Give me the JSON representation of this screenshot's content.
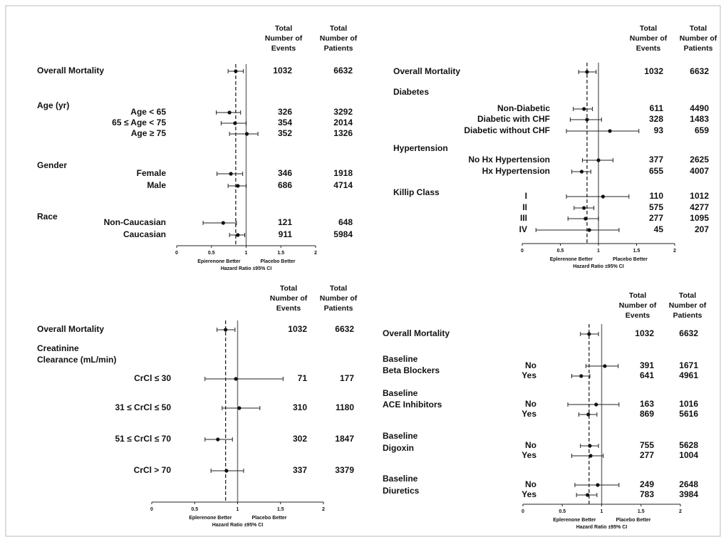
{
  "chart_data": [
    {
      "type": "forest",
      "columns": [
        [
          "Total",
          "Number of",
          "Events"
        ],
        [
          "Total",
          "Number of",
          "Patients"
        ]
      ],
      "overall": {
        "label": "Overall Mortality",
        "events": 1032,
        "patients": 6632,
        "hr": 0.85,
        "ci_low": 0.74,
        "ci_high": 0.96
      },
      "groups": [
        {
          "name": [
            "Age (yr)"
          ],
          "categories": [
            "Age < 65",
            "65 ≤ Age < 75",
            "Age ≥ 75"
          ],
          "events": [
            326,
            354,
            352
          ],
          "patients": [
            3292,
            2014,
            1326
          ],
          "hr": [
            0.76,
            0.84,
            1.01
          ],
          "ci_low": [
            0.57,
            0.64,
            0.76
          ],
          "ci_high": [
            0.92,
            1.0,
            1.17
          ]
        },
        {
          "name": [
            "Gender"
          ],
          "categories": [
            "Female",
            "Male"
          ],
          "events": [
            346,
            686
          ],
          "patients": [
            1918,
            4714
          ],
          "hr": [
            0.78,
            0.88
          ],
          "ci_low": [
            0.58,
            0.74
          ],
          "ci_high": [
            0.95,
            1.0
          ]
        },
        {
          "name": [
            "Race"
          ],
          "categories": [
            "Non-Caucasian",
            "Caucasian"
          ],
          "events": [
            121,
            911
          ],
          "patients": [
            648,
            5984
          ],
          "hr": [
            0.67,
            0.88
          ],
          "ci_low": [
            0.38,
            0.76
          ],
          "ci_high": [
            0.86,
            0.98
          ]
        }
      ],
      "reference": 1,
      "xlim": [
        0,
        2
      ],
      "xticks": [
        0,
        0.5,
        1,
        1.5,
        2
      ],
      "left_label": "Epierenone Better",
      "right_label": "Placebo Better",
      "xlabel": "Hazard Ratio ±95% CI"
    },
    {
      "type": "forest",
      "columns": [
        [
          "Total",
          "Number of",
          "Events"
        ],
        [
          "Total",
          "Number of",
          "Patients"
        ]
      ],
      "overall": {
        "label": "Overall Mortality",
        "events": 1032,
        "patients": 6632,
        "hr": 0.85,
        "ci_low": 0.74,
        "ci_high": 0.97
      },
      "groups": [
        {
          "name": [
            "Diabetes"
          ],
          "categories": [
            "Non-Diabetic",
            "Diabetic with CHF",
            "Diabetic without CHF"
          ],
          "events": [
            611,
            328,
            93
          ],
          "patients": [
            4490,
            1483,
            659
          ],
          "hr": [
            0.81,
            0.85,
            1.15
          ],
          "ci_low": [
            0.67,
            0.63,
            0.58
          ],
          "ci_high": [
            0.92,
            1.04,
            1.53
          ]
        },
        {
          "name": [
            "Hypertension"
          ],
          "categories": [
            "No Hx Hypertension",
            "Hx Hypertension"
          ],
          "events": [
            377,
            655
          ],
          "patients": [
            2625,
            4007
          ],
          "hr": [
            1.0,
            0.78
          ],
          "ci_low": [
            0.79,
            0.65
          ],
          "ci_high": [
            1.19,
            0.9
          ]
        },
        {
          "name": [
            "Killip Class"
          ],
          "categories": [
            "I",
            "II",
            "III",
            "IV"
          ],
          "events": [
            110,
            575,
            277,
            45
          ],
          "patients": [
            1012,
            4277,
            1095,
            207
          ],
          "hr": [
            1.06,
            0.81,
            0.83,
            0.88
          ],
          "ci_low": [
            0.58,
            0.68,
            0.6,
            0.18
          ],
          "ci_high": [
            1.4,
            0.94,
            1.0,
            1.27
          ]
        }
      ],
      "reference": 1,
      "xlim": [
        0,
        2
      ],
      "xticks": [
        0,
        0.5,
        1,
        1.5,
        2
      ],
      "left_label": "Eplerenone Better",
      "right_label": "Placebo Better",
      "xlabel": "Hazard Ratio ±95% CI"
    },
    {
      "type": "forest",
      "columns": [
        [
          "Total",
          "Number of",
          "Events"
        ],
        [
          "Total",
          "Number of",
          "Patients"
        ]
      ],
      "overall": {
        "label": "Overall Mortality",
        "events": 1032,
        "patients": 6632,
        "hr": 0.86,
        "ci_low": 0.76,
        "ci_high": 0.97
      },
      "groups": [
        {
          "name": [
            "Creatinine",
            "Clearance (mL/min)"
          ],
          "categories": [
            "CrCl ≤ 30",
            "31 ≤ CrCl ≤ 50",
            "51 ≤ CrCl ≤ 70",
            "CrCl > 70"
          ],
          "events": [
            71,
            310,
            302,
            337
          ],
          "patients": [
            177,
            1180,
            1847,
            3379
          ],
          "hr": [
            0.98,
            1.02,
            0.77,
            0.87
          ],
          "ci_low": [
            0.62,
            0.82,
            0.62,
            0.69
          ],
          "ci_high": [
            1.53,
            1.26,
            0.94,
            1.07
          ]
        }
      ],
      "reference": 1,
      "xlim": [
        0,
        2
      ],
      "xticks": [
        0,
        0.5,
        1,
        1.5,
        2
      ],
      "left_label": "Eplerenone Better",
      "right_label": "Placebo Better",
      "xlabel": "Hazard Ratio ±95% CI"
    },
    {
      "type": "forest",
      "columns": [
        [
          "Total",
          "Number of",
          "Events"
        ],
        [
          "Total",
          "Number of",
          "Patients"
        ]
      ],
      "overall": {
        "label": "Overall Mortality",
        "events": 1032,
        "patients": 6632,
        "hr": 0.84,
        "ci_low": 0.73,
        "ci_high": 0.96
      },
      "groups": [
        {
          "name": [
            "Baseline",
            "Beta Blockers"
          ],
          "categories": [
            "No",
            "Yes"
          ],
          "events": [
            391,
            641
          ],
          "patients": [
            1671,
            4961
          ],
          "hr": [
            1.04,
            0.74
          ],
          "ci_low": [
            0.8,
            0.62
          ],
          "ci_high": [
            1.21,
            0.85
          ]
        },
        {
          "name": [
            "Baseline",
            "ACE Inhibitors"
          ],
          "categories": [
            "No",
            "Yes"
          ],
          "events": [
            163,
            869
          ],
          "patients": [
            1016,
            5616
          ],
          "hr": [
            0.93,
            0.83
          ],
          "ci_low": [
            0.57,
            0.71
          ],
          "ci_high": [
            1.22,
            0.94
          ]
        },
        {
          "name": [
            "Baseline",
            "Digoxin"
          ],
          "categories": [
            "No",
            "Yes"
          ],
          "events": [
            755,
            277
          ],
          "patients": [
            5628,
            1004
          ],
          "hr": [
            0.85,
            0.86
          ],
          "ci_low": [
            0.73,
            0.62
          ],
          "ci_high": [
            0.96,
            1.02
          ]
        },
        {
          "name": [
            "Baseline",
            "Diuretics"
          ],
          "categories": [
            "No",
            "Yes"
          ],
          "events": [
            249,
            783
          ],
          "patients": [
            2648,
            3984
          ],
          "hr": [
            0.95,
            0.82
          ],
          "ci_low": [
            0.66,
            0.68
          ],
          "ci_high": [
            1.22,
            0.94
          ]
        }
      ],
      "reference": 1,
      "xlim": [
        0,
        2
      ],
      "xticks": [
        0,
        0.5,
        1,
        1.5,
        2
      ],
      "left_label": "Eplerenone Better",
      "right_label": "Placebo Better",
      "xlabel": "Hazard Ratio ±95% CI"
    }
  ]
}
